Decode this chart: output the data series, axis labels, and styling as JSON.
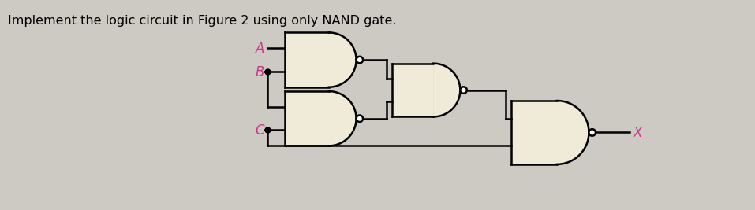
{
  "title": "Implement the logic circuit in Figure 2 using only NAND gate.",
  "title_fontsize": 11.5,
  "title_color": "black",
  "background_color": "#cdc9c3",
  "circuit_bg": "#ddd9d2",
  "gate_fill": "#f0ead8",
  "gate_edge": "black",
  "wire_color": "black",
  "label_color": "#c8388a",
  "bubble_color": "white",
  "bubble_edge": "black",
  "label_fontsize": 12,
  "output_label": "X",
  "lw": 1.8,
  "bubble_r": 0.055
}
